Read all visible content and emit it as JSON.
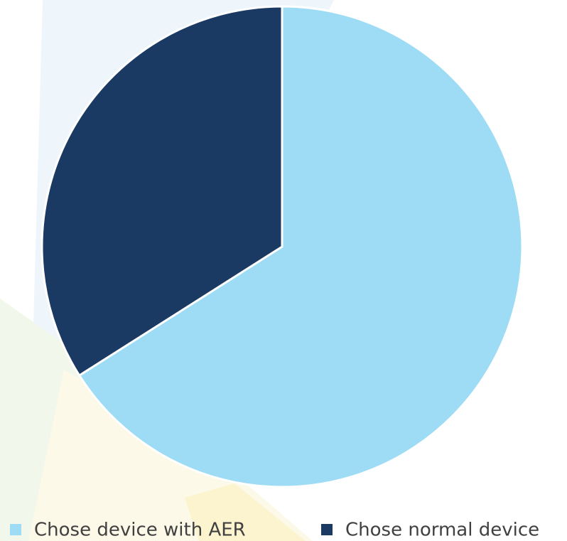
{
  "chart_data": {
    "type": "pie",
    "categories": [
      "Chose device with AER",
      "Chose normal device"
    ],
    "values": [
      66,
      34
    ],
    "colors": [
      "#9ddcf4",
      "#1a3a63"
    ],
    "start_angle": 0,
    "direction": "clockwise",
    "legend": "bottom"
  }
}
